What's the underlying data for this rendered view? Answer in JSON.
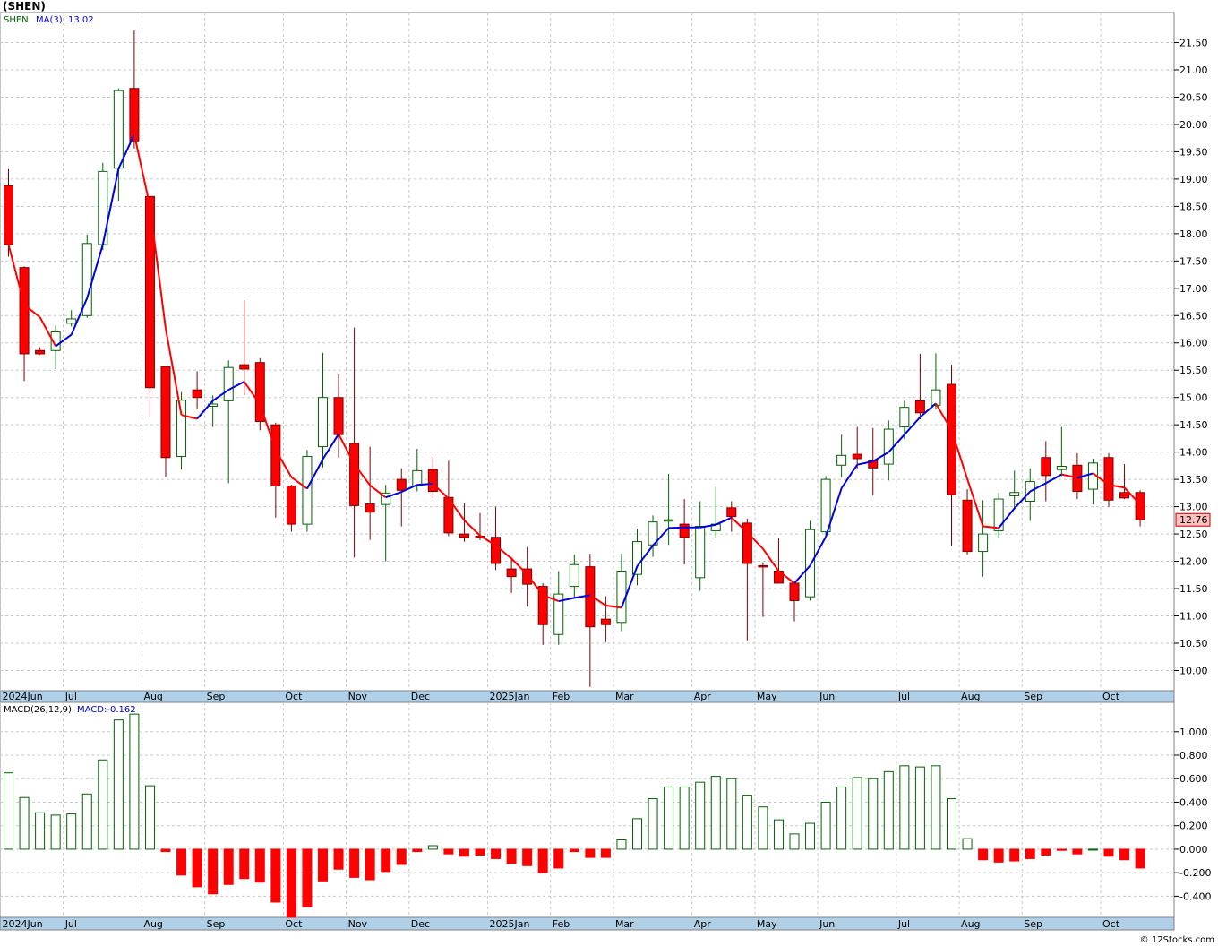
{
  "header": {
    "symbol": "(SHEN)"
  },
  "footer": {
    "credit": "© 12Stocks.com"
  },
  "chart_data": [
    {
      "type": "candlestick",
      "panel": "price",
      "legend": {
        "symbol": "SHEN",
        "ma_label": "MA(3)",
        "ma_value": "13.02"
      },
      "last_price_label": "12.76",
      "y_ticks": [
        "10.00",
        "10.50",
        "11.00",
        "11.50",
        "12.00",
        "12.50",
        "13.00",
        "13.50",
        "14.00",
        "14.50",
        "15.00",
        "15.50",
        "16.00",
        "16.50",
        "17.00",
        "17.50",
        "18.00",
        "18.50",
        "19.00",
        "19.50",
        "20.00",
        "20.50",
        "21.00",
        "21.50"
      ],
      "ylim": [
        9.63,
        22.05
      ],
      "month_labels": [
        "2024Jun",
        "Jul",
        "Aug",
        "Sep",
        "Oct",
        "Nov",
        "Dec",
        "2025Jan",
        "Feb",
        "Mar",
        "Apr",
        "May",
        "Jun",
        "Jul",
        "Aug",
        "Sep",
        "Oct"
      ],
      "month_start_index": [
        0,
        4,
        9,
        13,
        18,
        22,
        26,
        31,
        35,
        39,
        44,
        48,
        52,
        57,
        61,
        65,
        70
      ],
      "grid": true,
      "colors": {
        "up": "#ffffff",
        "down": "#ff0000",
        "ma_up": "#0000e0",
        "ma_down": "#ff0000",
        "wick_up": "#006400",
        "wick_down": "#800000",
        "axis_band": "#b0d0e8"
      },
      "candles": [
        {
          "o": 18.88,
          "h": 19.18,
          "l": 17.58,
          "c": 17.8
        },
        {
          "o": 17.38,
          "h": 17.4,
          "l": 15.3,
          "c": 15.8
        },
        {
          "o": 15.86,
          "h": 15.92,
          "l": 15.78,
          "c": 15.8
        },
        {
          "o": 15.86,
          "h": 16.32,
          "l": 15.52,
          "c": 16.2
        },
        {
          "o": 16.36,
          "h": 16.6,
          "l": 16.3,
          "c": 16.44
        },
        {
          "o": 16.5,
          "h": 17.98,
          "l": 16.46,
          "c": 17.82
        },
        {
          "o": 17.8,
          "h": 19.3,
          "l": 17.7,
          "c": 19.14
        },
        {
          "o": 19.2,
          "h": 20.66,
          "l": 18.6,
          "c": 20.62
        },
        {
          "o": 20.66,
          "h": 21.72,
          "l": 19.56,
          "c": 19.7
        },
        {
          "o": 18.68,
          "h": 18.7,
          "l": 14.64,
          "c": 15.18
        },
        {
          "o": 15.57,
          "h": 15.58,
          "l": 13.55,
          "c": 13.9
        },
        {
          "o": 13.92,
          "h": 15.1,
          "l": 13.68,
          "c": 14.95
        },
        {
          "o": 15.14,
          "h": 15.48,
          "l": 14.8,
          "c": 15.0
        },
        {
          "o": 14.84,
          "h": 15.04,
          "l": 14.46,
          "c": 14.88
        },
        {
          "o": 14.94,
          "h": 15.68,
          "l": 13.43,
          "c": 15.55
        },
        {
          "o": 15.6,
          "h": 16.78,
          "l": 15.04,
          "c": 15.52
        },
        {
          "o": 15.64,
          "h": 15.72,
          "l": 14.4,
          "c": 14.56
        },
        {
          "o": 14.5,
          "h": 14.54,
          "l": 12.8,
          "c": 13.38
        },
        {
          "o": 13.38,
          "h": 13.4,
          "l": 12.54,
          "c": 12.68
        },
        {
          "o": 12.68,
          "h": 14.04,
          "l": 12.54,
          "c": 13.92
        },
        {
          "o": 14.1,
          "h": 15.82,
          "l": 13.72,
          "c": 15.0
        },
        {
          "o": 15.0,
          "h": 15.42,
          "l": 13.9,
          "c": 14.32
        },
        {
          "o": 14.16,
          "h": 16.28,
          "l": 12.07,
          "c": 13.02
        },
        {
          "o": 13.05,
          "h": 14.1,
          "l": 12.39,
          "c": 12.9
        },
        {
          "o": 13.04,
          "h": 13.4,
          "l": 12.0,
          "c": 13.25
        },
        {
          "o": 13.5,
          "h": 13.7,
          "l": 12.64,
          "c": 13.3
        },
        {
          "o": 13.38,
          "h": 14.06,
          "l": 13.28,
          "c": 13.66
        },
        {
          "o": 13.68,
          "h": 13.92,
          "l": 13.16,
          "c": 13.28
        },
        {
          "o": 13.17,
          "h": 13.84,
          "l": 12.46,
          "c": 12.52
        },
        {
          "o": 12.5,
          "h": 13.06,
          "l": 12.36,
          "c": 12.44
        },
        {
          "o": 12.46,
          "h": 12.88,
          "l": 12.39,
          "c": 12.44
        },
        {
          "o": 12.44,
          "h": 13.0,
          "l": 11.84,
          "c": 11.96
        },
        {
          "o": 11.86,
          "h": 12.08,
          "l": 11.42,
          "c": 11.72
        },
        {
          "o": 11.86,
          "h": 12.26,
          "l": 11.17,
          "c": 11.58
        },
        {
          "o": 11.54,
          "h": 11.6,
          "l": 10.47,
          "c": 10.84
        },
        {
          "o": 10.66,
          "h": 11.82,
          "l": 10.47,
          "c": 11.4
        },
        {
          "o": 11.54,
          "h": 12.12,
          "l": 11.33,
          "c": 11.94
        },
        {
          "o": 11.9,
          "h": 12.14,
          "l": 9.7,
          "c": 10.8
        },
        {
          "o": 10.94,
          "h": 11.36,
          "l": 10.52,
          "c": 10.84
        },
        {
          "o": 10.88,
          "h": 12.14,
          "l": 10.72,
          "c": 11.82
        },
        {
          "o": 11.76,
          "h": 12.6,
          "l": 11.56,
          "c": 12.36
        },
        {
          "o": 12.3,
          "h": 12.84,
          "l": 12.08,
          "c": 12.72
        },
        {
          "o": 12.76,
          "h": 13.6,
          "l": 12.3,
          "c": 12.76
        },
        {
          "o": 12.68,
          "h": 13.14,
          "l": 11.94,
          "c": 12.44
        },
        {
          "o": 11.7,
          "h": 13.1,
          "l": 11.46,
          "c": 12.64
        },
        {
          "o": 12.56,
          "h": 13.36,
          "l": 12.42,
          "c": 12.68
        },
        {
          "o": 12.98,
          "h": 13.1,
          "l": 12.54,
          "c": 12.82
        },
        {
          "o": 12.7,
          "h": 12.78,
          "l": 10.55,
          "c": 11.96
        },
        {
          "o": 11.92,
          "h": 11.98,
          "l": 10.98,
          "c": 11.9
        },
        {
          "o": 11.82,
          "h": 12.42,
          "l": 11.64,
          "c": 11.6
        },
        {
          "o": 11.6,
          "h": 11.62,
          "l": 10.9,
          "c": 11.28
        },
        {
          "o": 11.35,
          "h": 12.74,
          "l": 11.28,
          "c": 12.58
        },
        {
          "o": 12.54,
          "h": 13.56,
          "l": 12.48,
          "c": 13.5
        },
        {
          "o": 13.76,
          "h": 14.32,
          "l": 13.54,
          "c": 13.94
        },
        {
          "o": 13.96,
          "h": 14.46,
          "l": 13.7,
          "c": 13.88
        },
        {
          "o": 13.84,
          "h": 14.44,
          "l": 13.21,
          "c": 13.71
        },
        {
          "o": 13.78,
          "h": 14.58,
          "l": 13.48,
          "c": 14.42
        },
        {
          "o": 14.46,
          "h": 14.94,
          "l": 14.24,
          "c": 14.82
        },
        {
          "o": 14.94,
          "h": 15.8,
          "l": 14.6,
          "c": 14.72
        },
        {
          "o": 14.86,
          "h": 15.81,
          "l": 14.78,
          "c": 15.14
        },
        {
          "o": 15.24,
          "h": 15.6,
          "l": 12.28,
          "c": 13.22
        },
        {
          "o": 13.12,
          "h": 13.32,
          "l": 12.12,
          "c": 12.18
        },
        {
          "o": 12.18,
          "h": 13.12,
          "l": 11.72,
          "c": 12.5
        },
        {
          "o": 12.56,
          "h": 13.26,
          "l": 12.44,
          "c": 13.14
        },
        {
          "o": 13.2,
          "h": 13.66,
          "l": 12.97,
          "c": 13.26
        },
        {
          "o": 13.1,
          "h": 13.7,
          "l": 12.74,
          "c": 13.46
        },
        {
          "o": 13.9,
          "h": 14.2,
          "l": 13.1,
          "c": 13.57
        },
        {
          "o": 13.68,
          "h": 14.46,
          "l": 13.56,
          "c": 13.74
        },
        {
          "o": 13.76,
          "h": 13.98,
          "l": 13.14,
          "c": 13.28
        },
        {
          "o": 13.32,
          "h": 13.88,
          "l": 13.04,
          "c": 13.8
        },
        {
          "o": 13.9,
          "h": 13.98,
          "l": 13.0,
          "c": 13.12
        },
        {
          "o": 13.26,
          "h": 13.78,
          "l": 13.14,
          "c": 13.16
        },
        {
          "o": 13.26,
          "h": 13.3,
          "l": 12.64,
          "c": 12.76
        }
      ],
      "ma3": [
        17.8,
        16.7,
        16.47,
        15.94,
        16.15,
        16.82,
        17.8,
        19.19,
        19.82,
        18.5,
        16.26,
        14.68,
        14.61,
        14.94,
        15.14,
        15.29,
        14.87,
        14.04,
        13.54,
        13.33,
        13.87,
        14.33,
        13.78,
        13.39,
        13.17,
        13.27,
        13.4,
        13.42,
        13.15,
        12.75,
        12.47,
        12.29,
        12.05,
        11.76,
        11.38,
        11.27,
        11.33,
        11.38,
        11.19,
        11.15,
        11.91,
        12.29,
        12.61,
        12.62,
        12.62,
        12.67,
        12.8,
        12.53,
        12.23,
        11.82,
        11.6,
        11.92,
        12.45,
        13.34,
        13.77,
        13.83,
        14.0,
        14.32,
        14.64,
        14.89,
        14.4,
        13.51,
        12.64,
        12.61,
        12.97,
        13.28,
        13.43,
        13.59,
        13.53,
        13.61,
        13.4,
        13.35,
        13.04
      ]
    },
    {
      "type": "bar",
      "panel": "macd",
      "legend": {
        "label": "MACD(26,12,9)",
        "value_label": "MACD:-0.162"
      },
      "y_ticks": [
        "-0.400",
        "-0.200",
        "0.000",
        "0.200",
        "0.400",
        "0.600",
        "0.800",
        "1.000"
      ],
      "ylim": [
        -0.58,
        1.25
      ],
      "month_labels": [
        "2024Jun",
        "Jul",
        "Aug",
        "Sep",
        "Oct",
        "Nov",
        "Dec",
        "2025Jan",
        "Feb",
        "Mar",
        "Apr",
        "May",
        "Jun",
        "Jul",
        "Aug",
        "Sep",
        "Oct"
      ],
      "colors": {
        "positive": "#006400",
        "negative": "#ff0000"
      },
      "values": [
        0.65,
        0.44,
        0.31,
        0.29,
        0.3,
        0.47,
        0.76,
        1.1,
        1.15,
        0.54,
        -0.02,
        -0.22,
        -0.32,
        -0.38,
        -0.3,
        -0.25,
        -0.28,
        -0.45,
        -0.58,
        -0.49,
        -0.27,
        -0.17,
        -0.24,
        -0.26,
        -0.19,
        -0.13,
        -0.02,
        0.03,
        -0.04,
        -0.06,
        -0.05,
        -0.08,
        -0.12,
        -0.14,
        -0.2,
        -0.16,
        -0.02,
        -0.07,
        -0.07,
        0.08,
        0.26,
        0.43,
        0.53,
        0.53,
        0.57,
        0.62,
        0.6,
        0.46,
        0.36,
        0.25,
        0.13,
        0.22,
        0.4,
        0.53,
        0.61,
        0.6,
        0.66,
        0.71,
        0.7,
        0.71,
        0.43,
        0.09,
        -0.09,
        -0.11,
        -0.1,
        -0.08,
        -0.05,
        -0.01,
        -0.04,
        0.0,
        -0.06,
        -0.09,
        -0.16
      ]
    }
  ]
}
